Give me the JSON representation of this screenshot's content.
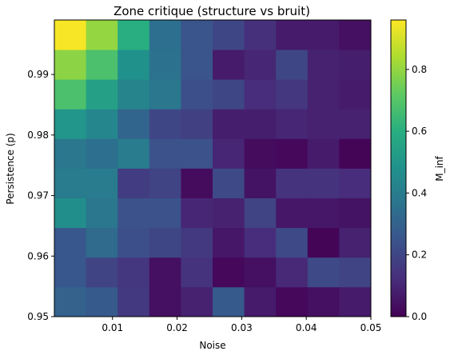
{
  "chart_data": {
    "type": "heatmap",
    "title": "Zone critique (structure vs bruit)",
    "xlabel": "Noise",
    "ylabel": "Persistence (p)",
    "xlim": [
      0.001,
      0.05
    ],
    "ylim": [
      0.95,
      0.999
    ],
    "x_ticks": [
      0.01,
      0.02,
      0.03,
      0.04,
      0.05
    ],
    "x_tick_labels": [
      "0.01",
      "0.02",
      "0.03",
      "0.04",
      "0.05"
    ],
    "y_ticks": [
      0.95,
      0.96,
      0.97,
      0.98,
      0.99
    ],
    "y_tick_labels": [
      "0.95",
      "0.96",
      "0.97",
      "0.98",
      "0.99"
    ],
    "x_centers": [
      0.00345,
      0.00835,
      0.01325,
      0.01815,
      0.02305,
      0.02795,
      0.03285,
      0.03775,
      0.04265,
      0.04755
    ],
    "y_centers": [
      0.95245,
      0.95735,
      0.96225,
      0.96715,
      0.97205,
      0.97695,
      0.98185,
      0.98675,
      0.99165,
      0.99655
    ],
    "values": [
      [
        0.3,
        0.27,
        0.16,
        0.04,
        0.09,
        0.27,
        0.07,
        0.02,
        0.04,
        0.07
      ],
      [
        0.26,
        0.19,
        0.15,
        0.04,
        0.14,
        0.02,
        0.04,
        0.11,
        0.21,
        0.19
      ],
      [
        0.26,
        0.33,
        0.23,
        0.2,
        0.16,
        0.06,
        0.12,
        0.21,
        0.01,
        0.09
      ],
      [
        0.47,
        0.38,
        0.24,
        0.24,
        0.1,
        0.09,
        0.19,
        0.06,
        0.06,
        0.05
      ],
      [
        0.4,
        0.4,
        0.17,
        0.19,
        0.03,
        0.21,
        0.05,
        0.14,
        0.14,
        0.12
      ],
      [
        0.38,
        0.35,
        0.4,
        0.24,
        0.24,
        0.1,
        0.03,
        0.02,
        0.07,
        0.01
      ],
      [
        0.5,
        0.44,
        0.31,
        0.2,
        0.18,
        0.08,
        0.08,
        0.1,
        0.09,
        0.09
      ],
      [
        0.68,
        0.54,
        0.43,
        0.38,
        0.23,
        0.2,
        0.12,
        0.15,
        0.09,
        0.07
      ],
      [
        0.79,
        0.68,
        0.48,
        0.36,
        0.25,
        0.07,
        0.1,
        0.2,
        0.09,
        0.08
      ],
      [
        0.95,
        0.8,
        0.6,
        0.35,
        0.25,
        0.2,
        0.13,
        0.07,
        0.07,
        0.04
      ]
    ],
    "colorbar": {
      "label": "M_inf",
      "vmin": 0,
      "vmax": 0.96,
      "ticks": [
        0.0,
        0.2,
        0.4,
        0.6,
        0.8
      ],
      "tick_labels": [
        "0.0",
        "0.2",
        "0.4",
        "0.6",
        "0.8"
      ],
      "colormap": "viridis"
    }
  }
}
